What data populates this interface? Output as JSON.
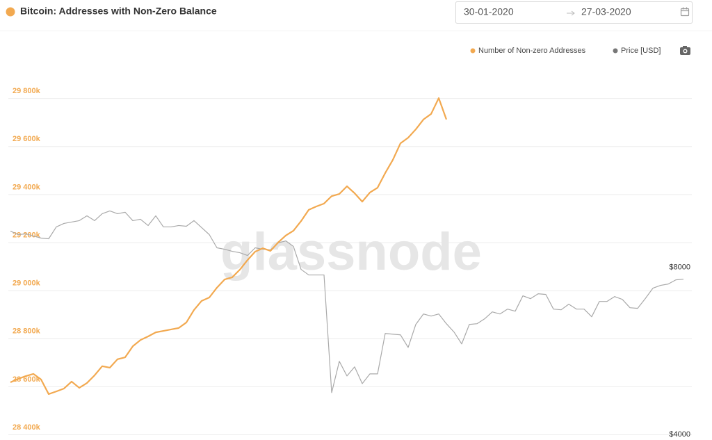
{
  "chart_data": {
    "type": "line",
    "title": "Bitcoin: Addresses with Non-Zero Balance",
    "date_from": "30-01-2020",
    "date_to": "27-03-2020",
    "watermark": "glassnode",
    "series": [
      {
        "name": "Number of Non-zero Addresses",
        "color": "#f2a950",
        "legend_color": "#f2a950",
        "values": [
          28617000,
          28631000,
          28643000,
          28652000,
          28629000,
          28568000,
          28579000,
          28591000,
          28620000,
          28594000,
          28614000,
          28646000,
          28684000,
          28678000,
          28713000,
          28721000,
          28767000,
          28793000,
          28808000,
          28825000,
          28831000,
          28837000,
          28843000,
          28866000,
          28918000,
          28956000,
          28970000,
          29011000,
          29045000,
          29054000,
          29086000,
          29126000,
          29161000,
          29175000,
          29164000,
          29199000,
          29228000,
          29248000,
          29288000,
          29335000,
          29349000,
          29361000,
          29392000,
          29401000,
          29433000,
          29404000,
          29369000,
          29407000,
          29427000,
          29488000,
          29543000,
          29612000,
          29635000,
          29670000,
          29711000,
          29734000,
          29800000,
          29711000,
          null,
          null,
          null,
          null,
          null,
          null,
          null,
          null,
          null,
          null,
          null,
          null,
          null,
          null,
          null,
          null,
          null,
          null,
          null,
          null,
          null,
          null,
          null,
          null,
          null,
          null,
          null,
          null,
          null,
          null,
          null
        ]
      },
      {
        "name": "Price [USD]",
        "color": "#a9a9a9",
        "legend_color": "#777777",
        "axis": "y2",
        "values": [
          8867,
          8783,
          8800,
          8750,
          8700,
          8683,
          8967,
          9050,
          9083,
          9117,
          9233,
          9117,
          9283,
          9350,
          9283,
          9317,
          9117,
          9150,
          9000,
          9233,
          8967,
          8967,
          9000,
          8983,
          9117,
          8950,
          8783,
          8467,
          8433,
          8383,
          8350,
          8283,
          8467,
          8433,
          8417,
          8583,
          8633,
          8500,
          7950,
          7817,
          7817,
          7817,
          5000,
          5750,
          5400,
          5617,
          5217,
          5450,
          5450,
          6417,
          6400,
          6383,
          6083,
          6633,
          6883,
          6833,
          6883,
          6650,
          6450,
          6167,
          6633,
          6650,
          6767,
          6933,
          6883,
          7000,
          6950,
          7317,
          7250,
          7367,
          7350,
          7000,
          6983,
          7117,
          7000,
          7000,
          6817,
          7183,
          7183,
          7300,
          7233,
          7033,
          7017,
          7250,
          7500,
          7567,
          7600,
          7700,
          7717
        ]
      }
    ],
    "ylim": [
      28400000,
      30000000
    ],
    "yticks": [
      {
        "value": 28400000,
        "label": "28 400k"
      },
      {
        "value": 28600000,
        "label": "28 600k"
      },
      {
        "value": 28800000,
        "label": "28 800k"
      },
      {
        "value": 29000000,
        "label": "29 000k"
      },
      {
        "value": 29200000,
        "label": "29 200k"
      },
      {
        "value": 29400000,
        "label": "29 400k"
      },
      {
        "value": 29600000,
        "label": "29 600k"
      },
      {
        "value": 29800000,
        "label": "29 800k"
      }
    ],
    "y2lim": [
      4000,
      13200
    ],
    "y2ticks": [
      {
        "value": 4000,
        "label": "$4000"
      },
      {
        "value": 8000,
        "label": "$8000"
      }
    ],
    "ytick_color": "#f2a950",
    "grid": true,
    "legend": "top-right"
  }
}
